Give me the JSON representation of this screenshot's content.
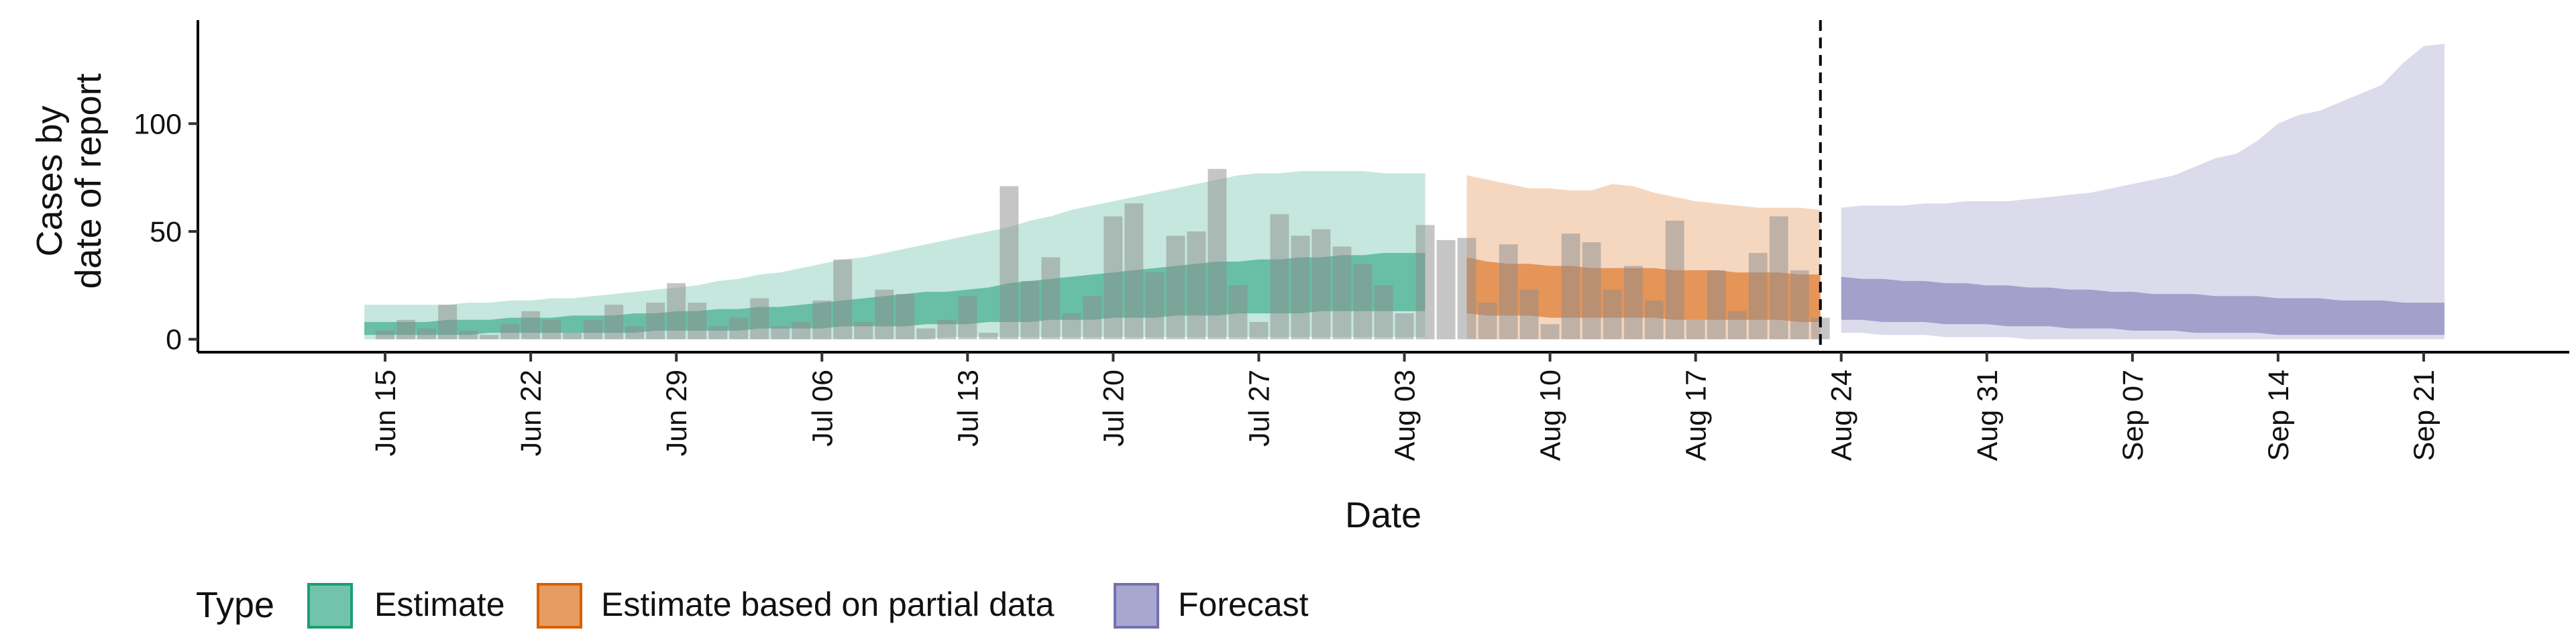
{
  "chart_data": {
    "type": "area",
    "xlabel": "Date",
    "ylabel_lines": [
      "Cases by",
      "date of report"
    ],
    "x_tick_labels": [
      "Jun 15",
      "Jun 22",
      "Jun 29",
      "Jul 06",
      "Jul 13",
      "Jul 20",
      "Jul 27",
      "Aug 03",
      "Aug 10",
      "Aug 17",
      "Aug 24",
      "Aug 31",
      "Sep 07",
      "Sep 14",
      "Sep 21"
    ],
    "x_tick_dates": [
      "2020-06-15",
      "2020-06-22",
      "2020-06-29",
      "2020-07-06",
      "2020-07-13",
      "2020-07-20",
      "2020-07-27",
      "2020-08-03",
      "2020-08-10",
      "2020-08-17",
      "2020-08-24",
      "2020-08-31",
      "2020-09-07",
      "2020-09-14",
      "2020-09-21"
    ],
    "y_ticks": [
      0,
      50,
      100
    ],
    "xlim": [
      "2020-06-06",
      "2020-09-28"
    ],
    "ylim": [
      -6,
      148
    ],
    "grid": false,
    "legend_position": "bottom",
    "legend": {
      "title": "Type",
      "entries": [
        {
          "label": "Estimate",
          "color": "#1b9e77"
        },
        {
          "label": "Estimate based on partial data",
          "color": "#d95f02"
        },
        {
          "label": "Forecast",
          "color": "#7570b3"
        }
      ]
    },
    "forecast_start_line": "2020-08-23",
    "bar_color": "#8c8c8c",
    "observed_cases": {
      "dates": [
        "2020-06-14",
        "2020-06-15",
        "2020-06-16",
        "2020-06-17",
        "2020-06-18",
        "2020-06-19",
        "2020-06-20",
        "2020-06-21",
        "2020-06-22",
        "2020-06-23",
        "2020-06-24",
        "2020-06-25",
        "2020-06-26",
        "2020-06-27",
        "2020-06-28",
        "2020-06-29",
        "2020-06-30",
        "2020-07-01",
        "2020-07-02",
        "2020-07-03",
        "2020-07-04",
        "2020-07-05",
        "2020-07-06",
        "2020-07-07",
        "2020-07-08",
        "2020-07-09",
        "2020-07-10",
        "2020-07-11",
        "2020-07-12",
        "2020-07-13",
        "2020-07-14",
        "2020-07-15",
        "2020-07-16",
        "2020-07-17",
        "2020-07-18",
        "2020-07-19",
        "2020-07-20",
        "2020-07-21",
        "2020-07-22",
        "2020-07-23",
        "2020-07-24",
        "2020-07-25",
        "2020-07-26",
        "2020-07-27",
        "2020-07-28",
        "2020-07-29",
        "2020-07-30",
        "2020-07-31",
        "2020-08-01",
        "2020-08-02",
        "2020-08-03",
        "2020-08-04",
        "2020-08-05",
        "2020-08-06",
        "2020-08-07",
        "2020-08-08",
        "2020-08-09",
        "2020-08-10",
        "2020-08-11",
        "2020-08-12",
        "2020-08-13",
        "2020-08-14",
        "2020-08-15",
        "2020-08-16",
        "2020-08-17",
        "2020-08-18",
        "2020-08-19",
        "2020-08-20",
        "2020-08-21",
        "2020-08-22",
        "2020-08-23"
      ],
      "values": [
        0,
        4,
        9,
        5,
        16,
        4,
        2,
        7,
        13,
        9,
        3,
        9,
        16,
        6,
        17,
        26,
        17,
        6,
        10,
        19,
        6,
        8,
        18,
        37,
        8,
        23,
        21,
        5,
        9,
        20,
        3,
        71,
        27,
        38,
        12,
        20,
        57,
        63,
        31,
        48,
        50,
        79,
        25,
        8,
        58,
        48,
        51,
        43,
        35,
        25,
        12,
        53,
        46,
        47,
        17,
        44,
        23,
        7,
        49,
        45,
        23,
        34,
        18,
        55,
        9,
        32,
        13,
        40,
        57,
        32,
        10
      ]
    },
    "series": [
      {
        "name": "Estimate",
        "start": "2020-06-14",
        "end": "2020-08-04",
        "inner_upper": [
          8,
          8,
          8,
          8,
          9,
          9,
          9,
          10,
          10,
          10,
          11,
          11,
          11,
          12,
          12,
          13,
          13,
          14,
          14,
          15,
          15,
          16,
          17,
          18,
          19,
          20,
          21,
          22,
          22,
          23,
          24,
          26,
          27,
          28,
          29,
          30,
          31,
          32,
          33,
          34,
          35,
          36,
          36,
          37,
          37,
          38,
          38,
          39,
          39,
          40,
          40,
          40
        ],
        "inner_lower": [
          2,
          2,
          2,
          2,
          2,
          2,
          3,
          3,
          3,
          3,
          3,
          3,
          3,
          3,
          4,
          4,
          4,
          4,
          4,
          5,
          5,
          5,
          5,
          6,
          6,
          6,
          6,
          7,
          7,
          7,
          8,
          8,
          8,
          9,
          9,
          9,
          10,
          10,
          10,
          11,
          11,
          11,
          12,
          12,
          12,
          12,
          13,
          13,
          13,
          13,
          13,
          13
        ],
        "outer_upper": [
          16,
          16,
          16,
          16,
          16,
          17,
          17,
          18,
          18,
          19,
          19,
          20,
          21,
          22,
          23,
          24,
          25,
          27,
          28,
          30,
          31,
          33,
          35,
          37,
          38,
          40,
          42,
          44,
          46,
          48,
          50,
          52,
          55,
          57,
          60,
          62,
          64,
          66,
          68,
          70,
          72,
          74,
          76,
          77,
          77,
          78,
          78,
          78,
          78,
          77,
          77,
          77
        ],
        "outer_lower": [
          0,
          0,
          0,
          0,
          0,
          0,
          0,
          0,
          0,
          0,
          0,
          0,
          0,
          0,
          0,
          0,
          0,
          0,
          0,
          0,
          0,
          0,
          0,
          0,
          0,
          0,
          0,
          0,
          1,
          1,
          1,
          1,
          1,
          1,
          1,
          1,
          1,
          1,
          1,
          1,
          1,
          1,
          1,
          1,
          1,
          1,
          1,
          1,
          1,
          1,
          1,
          1
        ]
      },
      {
        "name": "Estimate based on partial data",
        "start": "2020-08-06",
        "end": "2020-08-23",
        "inner_upper": [
          38,
          36,
          35,
          35,
          34,
          34,
          33,
          33,
          33,
          33,
          32,
          32,
          32,
          31,
          31,
          31,
          30,
          30
        ],
        "inner_lower": [
          12,
          11,
          11,
          11,
          10,
          10,
          10,
          10,
          10,
          10,
          9,
          9,
          9,
          9,
          9,
          9,
          8,
          8
        ],
        "outer_upper": [
          76,
          74,
          72,
          70,
          70,
          69,
          69,
          72,
          71,
          68,
          66,
          64,
          63,
          62,
          61,
          61,
          61,
          60
        ],
        "outer_lower": [
          0,
          0,
          0,
          0,
          0,
          0,
          0,
          0,
          0,
          0,
          0,
          0,
          0,
          0,
          0,
          0,
          0,
          0
        ]
      },
      {
        "name": "Forecast",
        "start": "2020-08-24",
        "end": "2020-09-22",
        "inner_upper": [
          29,
          28,
          28,
          27,
          27,
          26,
          26,
          25,
          25,
          24,
          24,
          23,
          23,
          22,
          22,
          21,
          21,
          21,
          20,
          20,
          20,
          19,
          19,
          19,
          18,
          18,
          18,
          17,
          17,
          17
        ],
        "inner_lower": [
          9,
          9,
          8,
          8,
          8,
          7,
          7,
          7,
          6,
          6,
          6,
          5,
          5,
          5,
          4,
          4,
          4,
          3,
          3,
          3,
          3,
          2,
          2,
          2,
          2,
          2,
          2,
          2,
          2,
          2
        ],
        "outer_upper": [
          61,
          62,
          62,
          62,
          63,
          63,
          64,
          64,
          64,
          65,
          66,
          67,
          68,
          70,
          72,
          74,
          76,
          80,
          84,
          86,
          92,
          100,
          104,
          106,
          110,
          114,
          118,
          128,
          136,
          137
        ],
        "outer_lower": [
          3,
          3,
          2,
          2,
          2,
          1,
          1,
          1,
          1,
          0,
          0,
          0,
          0,
          0,
          0,
          0,
          0,
          0,
          0,
          0,
          0,
          0,
          0,
          0,
          0,
          0,
          0,
          0,
          0,
          0
        ]
      }
    ]
  }
}
